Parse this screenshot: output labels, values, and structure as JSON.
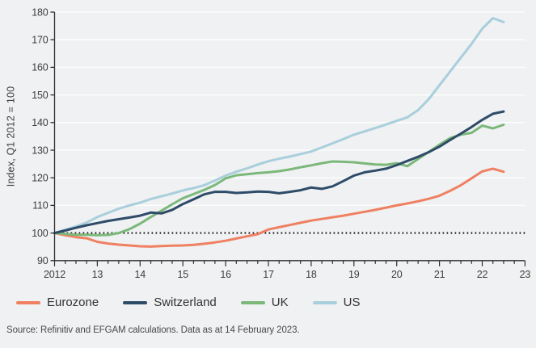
{
  "chart_data": {
    "type": "line",
    "title": "",
    "xlabel": "",
    "ylabel": "Index, Q1 2012 = 100",
    "xlim": [
      2012,
      2023
    ],
    "ylim": [
      90,
      180
    ],
    "ytick_step": 10,
    "xtick_labels": [
      "2012",
      "13",
      "14",
      "15",
      "16",
      "17",
      "18",
      "19",
      "20",
      "21",
      "22",
      "23"
    ],
    "x_start": 2012,
    "x_step": 0.25,
    "x_unit": "quarterly",
    "baseline": 100,
    "grid": "horizontal-only",
    "legend_position": "bottom",
    "draw_order": [
      "US",
      "Eurozone",
      "UK",
      "Switzerland"
    ],
    "colors": {
      "background": "#eff1f3",
      "gridline": "#fcfdfd",
      "axis": "#2f2f2f",
      "baseline": "#1b1b1b",
      "tick_text": "#3d3d3d"
    },
    "series": [
      {
        "name": "Eurozone",
        "color": "#ef8061",
        "values": [
          100,
          99.2,
          98.5,
          98.1,
          96.8,
          96.2,
          95.8,
          95.5,
          95.2,
          95.1,
          95.3,
          95.4,
          95.5,
          95.7,
          96.1,
          96.6,
          97.2,
          98.0,
          98.8,
          99.6,
          101.3,
          102.1,
          102.9,
          103.7,
          104.5,
          105.1,
          105.7,
          106.3,
          107.0,
          107.7,
          108.4,
          109.2,
          110.0,
          110.7,
          111.5,
          112.4,
          113.5,
          115.3,
          117.3,
          119.8,
          122.3,
          123.3,
          122.2
        ]
      },
      {
        "name": "Switzerland",
        "color": "#2e4b68",
        "values": [
          100,
          100.9,
          101.9,
          102.8,
          103.6,
          104.4,
          105.0,
          105.6,
          106.3,
          107.4,
          107.1,
          108.4,
          110.5,
          112.2,
          114.0,
          114.9,
          114.9,
          114.5,
          114.7,
          115.0,
          114.9,
          114.4,
          114.9,
          115.5,
          116.5,
          116.0,
          116.9,
          118.8,
          120.8,
          122.0,
          122.6,
          123.3,
          124.6,
          126.1,
          127.6,
          129.3,
          131.3,
          133.7,
          136.0,
          138.4,
          141.0,
          143.2,
          144.0
        ]
      },
      {
        "name": "UK",
        "color": "#7cb87a",
        "values": [
          100,
          99.7,
          99.4,
          99.4,
          99.2,
          99.3,
          100.0,
          101.4,
          103.4,
          105.8,
          108.1,
          110.4,
          112.6,
          114.1,
          115.6,
          117.4,
          119.8,
          120.9,
          121.3,
          121.7,
          122.0,
          122.4,
          123.0,
          123.8,
          124.5,
          125.3,
          125.9,
          125.8,
          125.6,
          125.2,
          124.8,
          124.7,
          125.3,
          124.2,
          126.8,
          129.4,
          132.0,
          134.4,
          135.6,
          136.3,
          138.9,
          137.9,
          139.2
        ]
      },
      {
        "name": "US",
        "color": "#a9cfdc",
        "values": [
          100,
          101.2,
          102.4,
          103.8,
          105.8,
          107.3,
          108.8,
          110.0,
          111.0,
          112.3,
          113.3,
          114.3,
          115.4,
          116.3,
          117.3,
          119.0,
          120.8,
          122.2,
          123.4,
          124.8,
          126.0,
          126.9,
          127.7,
          128.6,
          129.5,
          131.0,
          132.5,
          134.0,
          135.6,
          136.8,
          138.0,
          139.3,
          140.6,
          141.9,
          144.5,
          148.5,
          153.5,
          158.5,
          163.5,
          168.5,
          174.0,
          177.8,
          176.4
        ]
      }
    ]
  },
  "source_note": "Source: Refinitiv and EFGAM calculations. Data as at 14 February 2023."
}
